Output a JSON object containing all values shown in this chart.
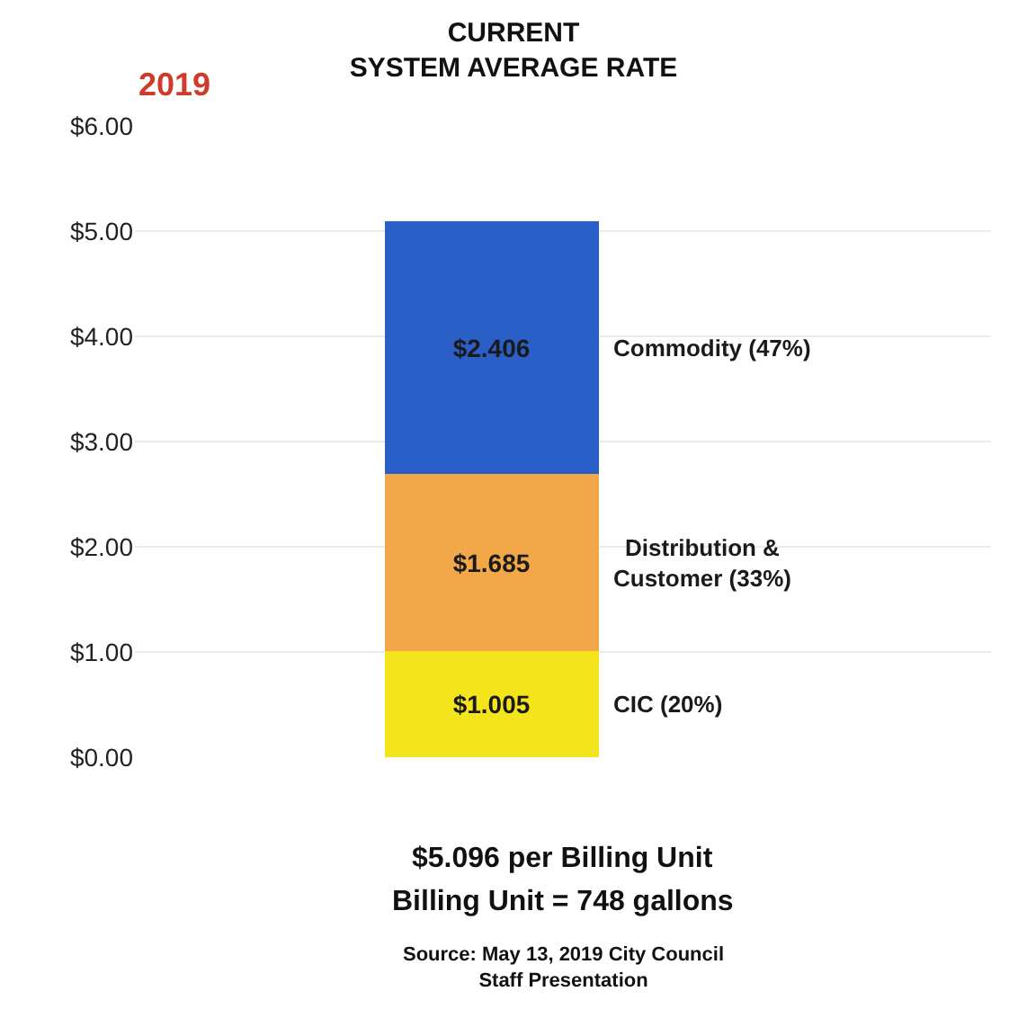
{
  "chart_data": {
    "type": "bar",
    "stacked": true,
    "title": "CURRENT\nSYSTEM AVERAGE RATE",
    "categories": [
      null
    ],
    "series": [
      {
        "name": "CIC (20%)",
        "color": "#f4e41c",
        "values": [
          1.005
        ],
        "value_labels": [
          "$1.005"
        ]
      },
      {
        "name": "Distribution &\nCustomer (33%)",
        "color": "#f2a848",
        "values": [
          1.685
        ],
        "value_labels": [
          "$1.685"
        ]
      },
      {
        "name": "Commodity (47%)",
        "color": "#2a5fc8",
        "values": [
          2.406
        ],
        "value_labels": [
          "$2.406"
        ]
      }
    ],
    "ylim": [
      0,
      6
    ],
    "yticks": [
      {
        "value": 0,
        "label": "$0.00"
      },
      {
        "value": 1,
        "label": "$1.00"
      },
      {
        "value": 2,
        "label": "$2.00"
      },
      {
        "value": 3,
        "label": "$3.00"
      },
      {
        "value": 4,
        "label": "$4.00"
      },
      {
        "value": 5,
        "label": "$5.00"
      },
      {
        "value": 6,
        "label": "$6.00"
      }
    ],
    "grid": "y",
    "tick_labels": "y",
    "annotations": [
      "2019",
      "$5.096 per Billing Unit",
      "Billing Unit = 748 gallons",
      "Source: May 13, 2019 City Council\nStaff Presentation"
    ]
  }
}
